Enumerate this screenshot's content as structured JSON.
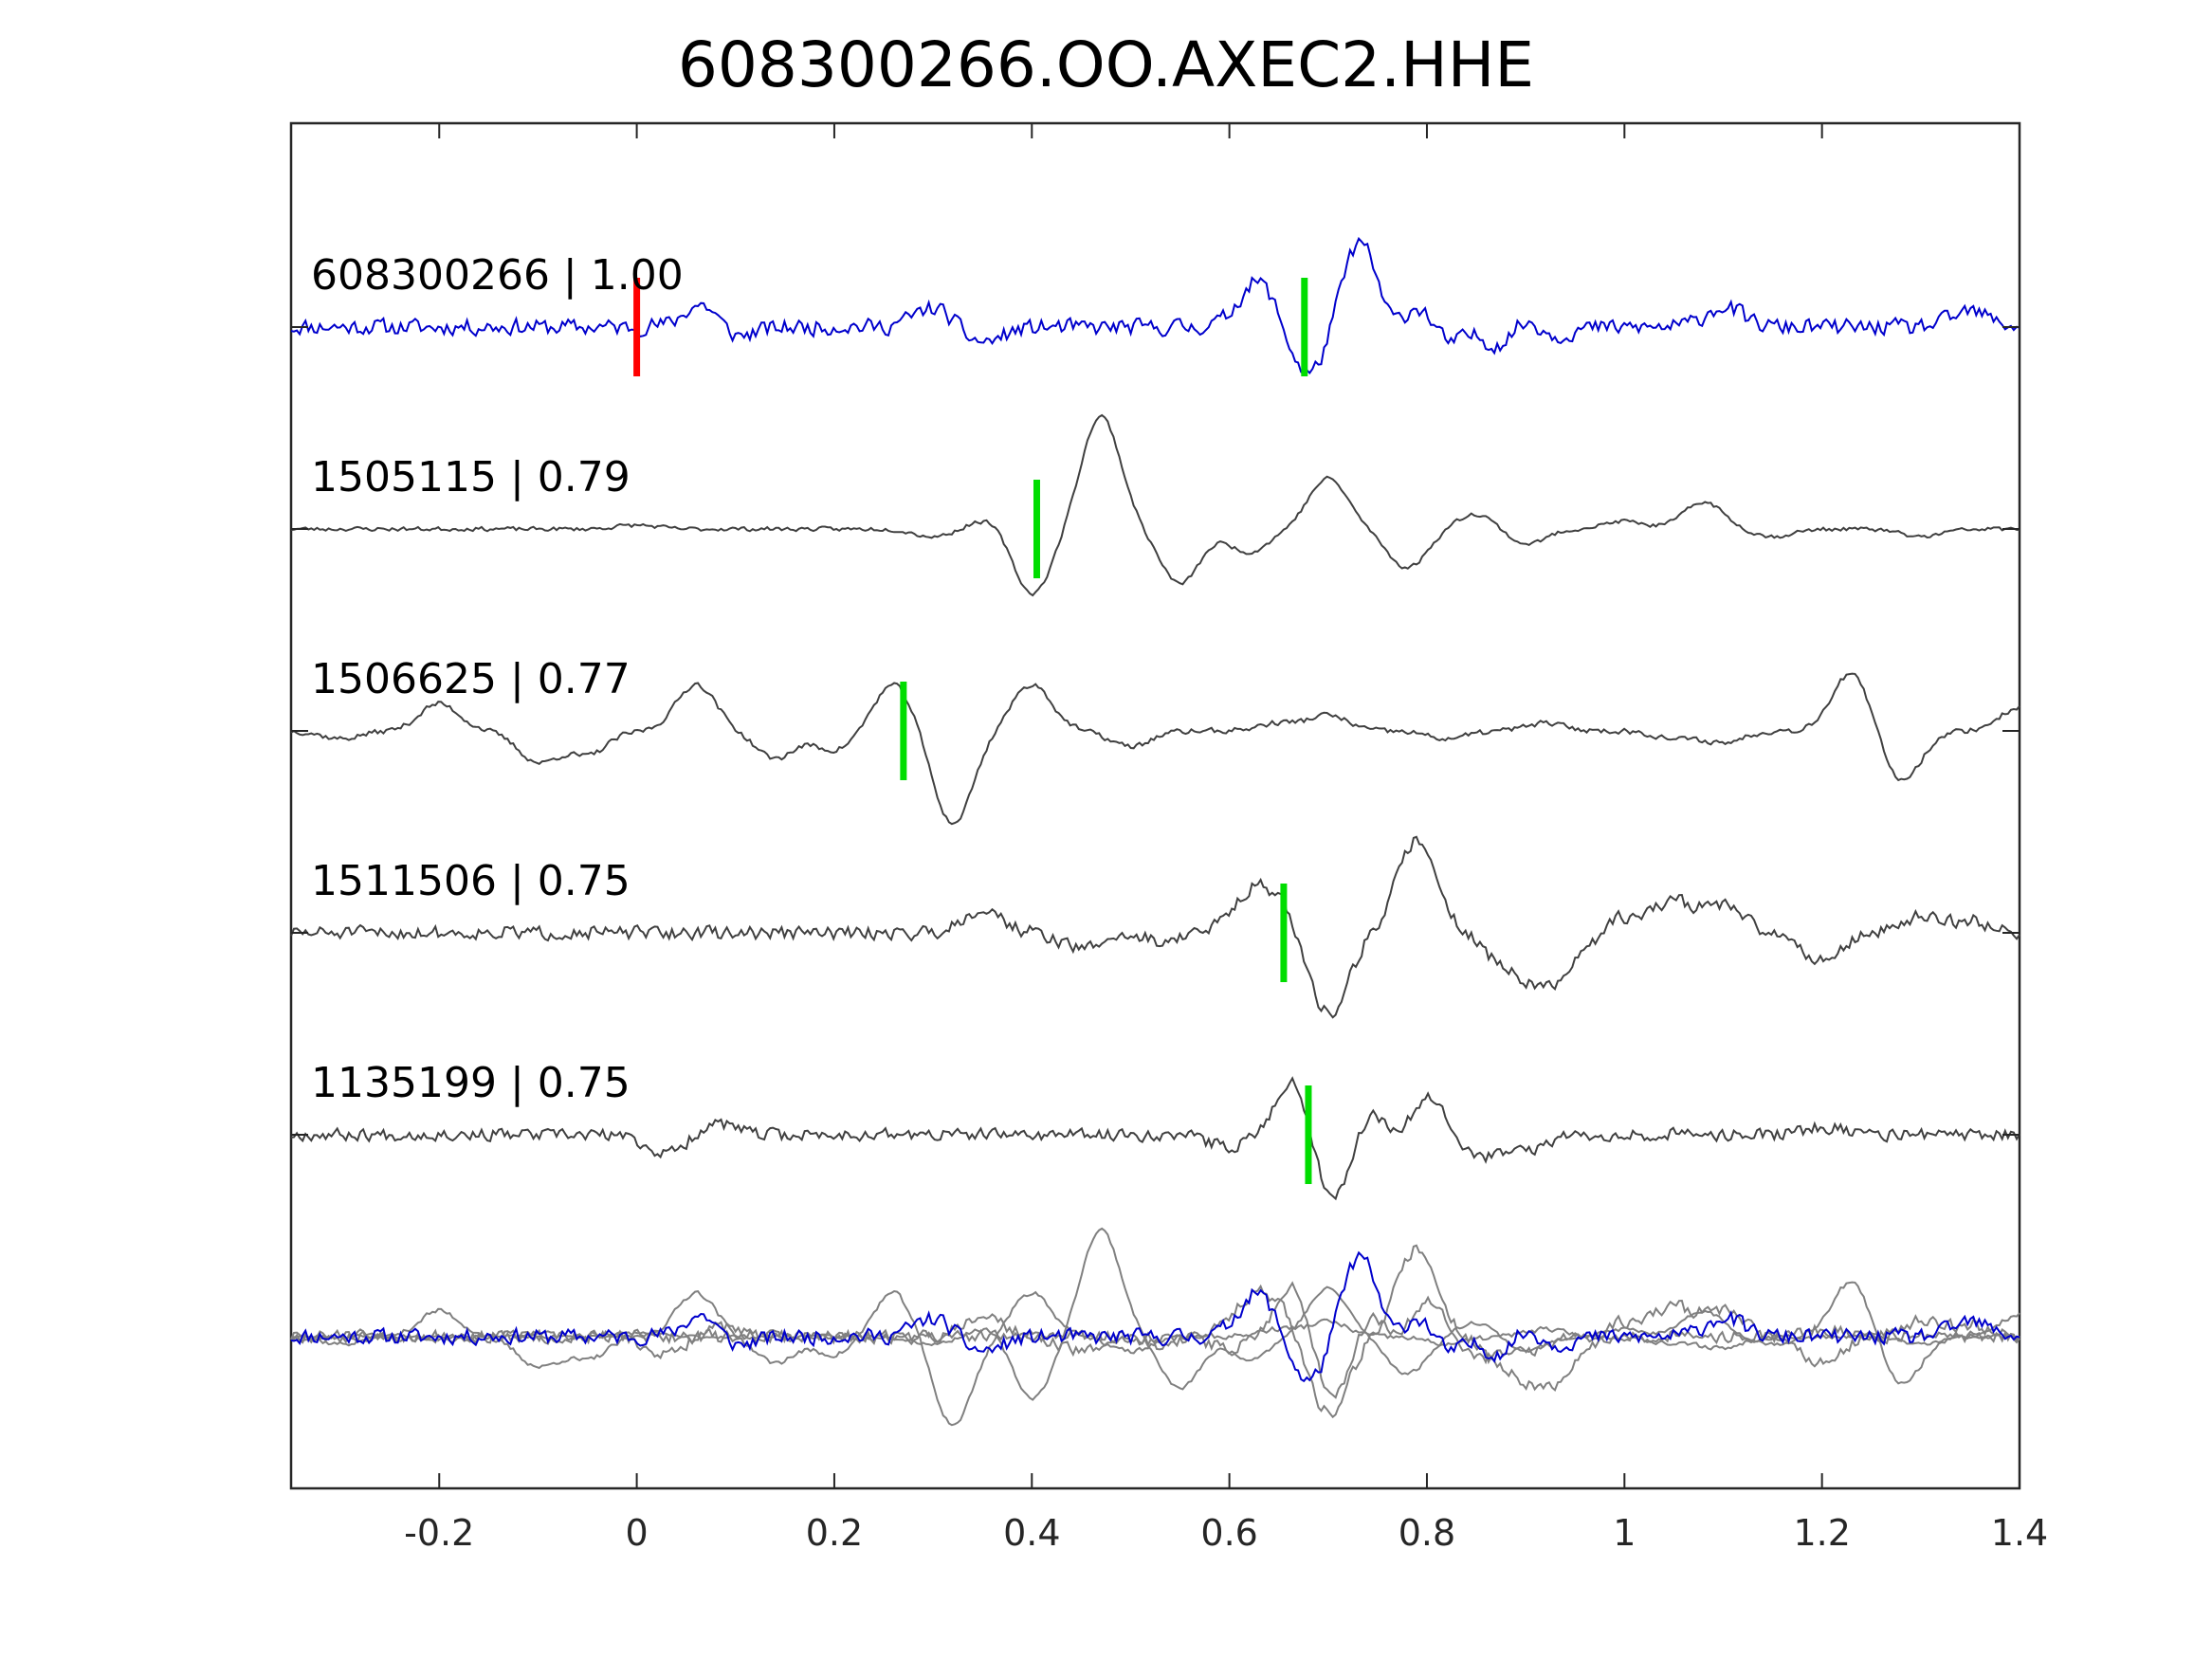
{
  "chart_data": {
    "type": "line",
    "title": "608300266.OO.AXEC2.HHE",
    "xlim": [
      -0.35,
      1.4
    ],
    "x_ticks": [
      -0.2,
      0,
      0.2,
      0.4,
      0.6,
      0.8,
      1,
      1.2,
      1.4
    ],
    "x_tick_labels": [
      "-0.2",
      "0",
      "0.2",
      "0.4",
      "0.6",
      "0.8",
      "1",
      "1.2",
      "1.4"
    ],
    "grid": false,
    "traces": [
      {
        "id": "608300266",
        "label": "608300266 | 1.00",
        "color": "#0000cc",
        "marks": [
          {
            "x": 0.0,
            "color": "#ff0000"
          },
          {
            "x": 0.676,
            "color": "#00dd00"
          }
        ],
        "events": [
          [
            0.073,
            0.5
          ],
          [
            0.088,
            -0.35
          ],
          [
            0.3,
            0.25
          ],
          [
            0.35,
            -0.2
          ],
          [
            0.63,
            0.6
          ],
          [
            0.68,
            -0.65
          ],
          [
            0.735,
            1.3
          ],
          [
            0.76,
            -0.5
          ],
          [
            0.79,
            0.5
          ],
          [
            0.82,
            -0.4
          ],
          [
            0.85,
            0.3
          ],
          [
            0.87,
            -0.5
          ],
          [
            0.9,
            0.35
          ],
          [
            0.92,
            -0.25
          ],
          [
            1.1,
            0.25
          ],
          [
            1.35,
            0.2
          ]
        ],
        "noise": 0.12,
        "seed": 11
      },
      {
        "id": "1505115",
        "label": "1505115 | 0.79",
        "color": "#404040",
        "marks": [
          {
            "x": 0.405,
            "color": "#00dd00"
          }
        ],
        "events": [
          [
            0.0,
            0.05
          ],
          [
            0.3,
            -0.1
          ],
          [
            0.36,
            0.15
          ],
          [
            0.4,
            -0.85
          ],
          [
            0.47,
            1.45
          ],
          [
            0.55,
            -0.7
          ],
          [
            0.62,
            -0.3
          ],
          [
            0.7,
            0.65
          ],
          [
            0.78,
            -0.5
          ],
          [
            0.85,
            0.2
          ],
          [
            0.9,
            -0.2
          ],
          [
            1.0,
            0.1
          ],
          [
            1.08,
            0.35
          ],
          [
            1.15,
            -0.1
          ],
          [
            1.3,
            -0.1
          ]
        ],
        "noise": 0.03,
        "seed": 23
      },
      {
        "id": "1506625",
        "label": "1506625 | 0.77",
        "color": "#404040",
        "marks": [
          {
            "x": 0.27,
            "color": "#00dd00"
          }
        ],
        "events": [
          [
            -0.3,
            -0.1
          ],
          [
            -0.2,
            0.35
          ],
          [
            -0.1,
            -0.4
          ],
          [
            -0.05,
            -0.3
          ],
          [
            0.06,
            0.6
          ],
          [
            0.14,
            -0.35
          ],
          [
            0.2,
            -0.25
          ],
          [
            0.26,
            0.6
          ],
          [
            0.32,
            -1.2
          ],
          [
            0.4,
            0.6
          ],
          [
            0.5,
            -0.2
          ],
          [
            0.65,
            0.1
          ],
          [
            0.7,
            0.2
          ],
          [
            0.82,
            -0.1
          ],
          [
            0.92,
            0.1
          ],
          [
            1.05,
            -0.1
          ],
          [
            1.1,
            -0.15
          ],
          [
            1.23,
            0.75
          ],
          [
            1.28,
            -0.65
          ],
          [
            1.4,
            0.3
          ]
        ],
        "noise": 0.04,
        "seed": 37
      },
      {
        "id": "1511506",
        "label": "1511506 | 0.75",
        "color": "#404040",
        "marks": [
          {
            "x": 0.655,
            "color": "#00dd00"
          }
        ],
        "events": [
          [
            0.35,
            0.3
          ],
          [
            0.45,
            -0.2
          ],
          [
            0.53,
            -0.1
          ],
          [
            0.62,
            0.45
          ],
          [
            0.65,
            0.35
          ],
          [
            0.7,
            -1.05
          ],
          [
            0.79,
            1.2
          ],
          [
            0.88,
            -0.4
          ],
          [
            0.92,
            -0.6
          ],
          [
            0.95,
            -0.2
          ],
          [
            1.0,
            0.2
          ],
          [
            1.05,
            0.4
          ],
          [
            1.1,
            0.35
          ],
          [
            1.2,
            -0.35
          ],
          [
            1.3,
            0.2
          ],
          [
            1.35,
            0.15
          ]
        ],
        "noise": 0.1,
        "seed": 51
      },
      {
        "id": "1135199",
        "label": "1135199 | 0.75",
        "color": "#404040",
        "marks": [
          {
            "x": 0.68,
            "color": "#00dd00"
          }
        ],
        "events": [
          [
            0.03,
            -0.25
          ],
          [
            0.08,
            0.15
          ],
          [
            0.6,
            -0.15
          ],
          [
            0.67,
            0.9
          ],
          [
            0.7,
            -1.05
          ],
          [
            0.75,
            0.5
          ],
          [
            0.77,
            -0.4
          ],
          [
            0.8,
            0.6
          ],
          [
            0.85,
            -0.3
          ],
          [
            0.9,
            -0.2
          ],
          [
            1.2,
            0.1
          ]
        ],
        "noise": 0.09,
        "seed": 67
      }
    ]
  }
}
